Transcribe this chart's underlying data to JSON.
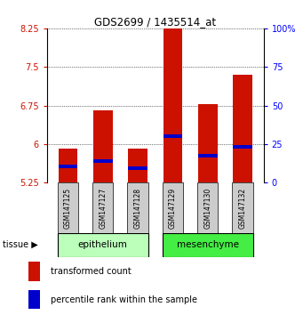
{
  "title": "GDS2699 / 1435514_at",
  "samples": [
    "GSM147125",
    "GSM147127",
    "GSM147128",
    "GSM147129",
    "GSM147130",
    "GSM147132"
  ],
  "bar_bottom": 5.25,
  "bar_tops": [
    5.92,
    6.65,
    5.92,
    8.35,
    6.78,
    7.35
  ],
  "blue_markers": [
    5.56,
    5.67,
    5.53,
    6.15,
    5.78,
    5.95
  ],
  "ylim_left": [
    5.25,
    8.25
  ],
  "yticks_left": [
    5.25,
    6.0,
    6.75,
    7.5,
    8.25
  ],
  "yticks_right": [
    0,
    25,
    50,
    75,
    100
  ],
  "ytick_labels_left": [
    "5.25",
    "6",
    "6.75",
    "7.5",
    "8.25"
  ],
  "ytick_labels_right": [
    "0",
    "25",
    "50",
    "75",
    "100%"
  ],
  "bar_color": "#cc1100",
  "blue_color": "#0000cc",
  "tissue_groups": [
    {
      "name": "epithelium",
      "indices": [
        0,
        1,
        2
      ],
      "color": "#bbffbb"
    },
    {
      "name": "mesenchyme",
      "indices": [
        3,
        4,
        5
      ],
      "color": "#44ee44"
    }
  ],
  "legend_red_label": "transformed count",
  "legend_blue_label": "percentile rank within the sample",
  "tissue_label": "tissue",
  "bar_width": 0.55,
  "background_color": "#ffffff",
  "sample_box_color": "#cccccc"
}
